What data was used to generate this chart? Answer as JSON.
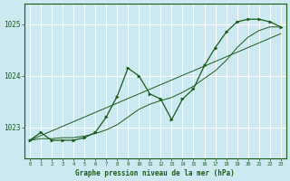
{
  "xlabel": "Graphe pression niveau de la mer (hPa)",
  "bg_color": "#cce8f0",
  "grid_color": "#ffffff",
  "line_color": "#1a5c1a",
  "hours": [
    0,
    1,
    2,
    3,
    4,
    5,
    6,
    7,
    8,
    9,
    10,
    11,
    12,
    13,
    14,
    15,
    16,
    17,
    18,
    19,
    20,
    21,
    22,
    23
  ],
  "pressure_jagged": [
    1022.75,
    1022.9,
    1022.75,
    1022.75,
    1022.75,
    1022.8,
    1022.9,
    1023.2,
    1023.6,
    1024.15,
    1024.0,
    1023.65,
    1023.55,
    1023.15,
    1023.55,
    1023.75,
    1024.2,
    1024.55,
    1024.85,
    1025.05,
    1025.1,
    1025.1,
    1025.05,
    1024.95
  ],
  "pressure_smooth": [
    1022.75,
    1022.78,
    1022.78,
    1022.8,
    1022.8,
    1022.83,
    1022.88,
    1022.95,
    1023.05,
    1023.2,
    1023.35,
    1023.45,
    1023.52,
    1023.58,
    1023.68,
    1023.8,
    1023.95,
    1024.1,
    1024.3,
    1024.55,
    1024.75,
    1024.88,
    1024.95,
    1024.95
  ],
  "pressure_linear": [
    1022.75,
    1022.84,
    1022.93,
    1023.02,
    1023.11,
    1023.2,
    1023.29,
    1023.38,
    1023.47,
    1023.56,
    1023.65,
    1023.74,
    1023.83,
    1023.92,
    1024.01,
    1024.1,
    1024.19,
    1024.28,
    1024.37,
    1024.46,
    1024.55,
    1024.64,
    1024.73,
    1024.82
  ],
  "ylim": [
    1022.4,
    1025.4
  ],
  "yticks": [
    1023,
    1024,
    1025
  ],
  "xlim": [
    -0.5,
    23.5
  ]
}
